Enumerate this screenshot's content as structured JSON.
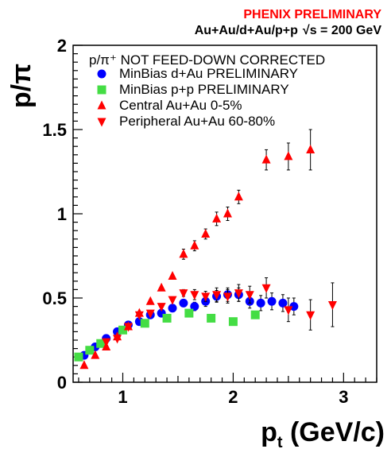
{
  "chart_data": {
    "type": "scatter",
    "header": "PHENIX PRELIMINARY",
    "system": "Au+Au/d+Au/p+p",
    "energy": "s = 200 GeV",
    "energy_prefix": "√",
    "xlabel": "p",
    "xlabel_sub": "t",
    "xlabel_unit": " (GeV/c)",
    "ylabel": "p/π",
    "xlim": [
      0.55,
      3.3
    ],
    "ylim": [
      0,
      2
    ],
    "xticks": [
      {
        "value": 1,
        "label": "1"
      },
      {
        "value": 2,
        "label": "2"
      },
      {
        "value": 3,
        "label": "3"
      }
    ],
    "yticks": [
      {
        "value": 0,
        "label": "0"
      },
      {
        "value": 0.5,
        "label": "0.5"
      },
      {
        "value": 1,
        "label": "1"
      },
      {
        "value": 1.5,
        "label": "1.5"
      },
      {
        "value": 2,
        "label": "2"
      }
    ],
    "legend_title": "p/π⁺ NOT FEED-DOWN CORRECTED",
    "legend_position": "top",
    "grid": false,
    "series": [
      {
        "name": "MinBias d+Au PRELIMINARY",
        "marker": "circle",
        "color": "#0000ff",
        "points": [
          [
            0.65,
            0.16,
            0.01
          ],
          [
            0.75,
            0.21,
            0.01
          ],
          [
            0.85,
            0.26,
            0.01
          ],
          [
            0.95,
            0.3,
            0.01
          ],
          [
            1.05,
            0.34,
            0.01
          ],
          [
            1.15,
            0.36,
            0.01
          ],
          [
            1.25,
            0.4,
            0.015
          ],
          [
            1.35,
            0.41,
            0.015
          ],
          [
            1.45,
            0.44,
            0.02
          ],
          [
            1.55,
            0.47,
            0.02
          ],
          [
            1.65,
            0.45,
            0.025
          ],
          [
            1.75,
            0.48,
            0.03
          ],
          [
            1.85,
            0.51,
            0.035
          ],
          [
            1.95,
            0.52,
            0.04
          ],
          [
            2.05,
            0.52,
            0.04
          ],
          [
            2.15,
            0.48,
            0.04
          ],
          [
            2.25,
            0.47,
            0.045
          ],
          [
            2.35,
            0.48,
            0.05
          ],
          [
            2.45,
            0.47,
            0.05
          ],
          [
            2.55,
            0.45,
            0.05
          ]
        ]
      },
      {
        "name": "MinBias p+p PRELIMINARY",
        "marker": "square",
        "color": "#44dd44",
        "points": [
          [
            0.6,
            0.15,
            0.0
          ],
          [
            0.7,
            0.19,
            0.0
          ],
          [
            0.8,
            0.23,
            0.0
          ],
          [
            1.0,
            0.31,
            0.0
          ],
          [
            1.2,
            0.35,
            0.0
          ],
          [
            1.4,
            0.38,
            0.0
          ],
          [
            1.6,
            0.41,
            0.0
          ],
          [
            1.8,
            0.38,
            0.0
          ],
          [
            2.0,
            0.36,
            0.0
          ],
          [
            2.2,
            0.4,
            0.0
          ]
        ]
      },
      {
        "name": "Central    Au+Au  0-5%",
        "marker": "triangle-up",
        "color": "#ff0000",
        "points": [
          [
            0.65,
            0.1,
            0.0
          ],
          [
            0.75,
            0.16,
            0.0
          ],
          [
            0.85,
            0.21,
            0.0
          ],
          [
            0.95,
            0.27,
            0.0
          ],
          [
            1.05,
            0.33,
            0.0
          ],
          [
            1.15,
            0.41,
            0.0
          ],
          [
            1.25,
            0.48,
            0.0
          ],
          [
            1.35,
            0.56,
            0.0
          ],
          [
            1.45,
            0.63,
            0.0
          ],
          [
            1.55,
            0.76,
            0.03
          ],
          [
            1.65,
            0.81,
            0.03
          ],
          [
            1.75,
            0.88,
            0.03
          ],
          [
            1.85,
            0.97,
            0.04
          ],
          [
            1.95,
            1.0,
            0.04
          ],
          [
            2.05,
            1.1,
            0.04
          ],
          [
            2.3,
            1.32,
            0.06
          ],
          [
            2.5,
            1.34,
            0.08
          ],
          [
            2.7,
            1.38,
            0.12
          ]
        ]
      },
      {
        "name": "Peripheral Au+Au 60-80%",
        "marker": "triangle-down",
        "color": "#ff0000",
        "points": [
          [
            0.85,
            0.24,
            0.0
          ],
          [
            0.95,
            0.26,
            0.0
          ],
          [
            1.05,
            0.33,
            0.0
          ],
          [
            1.15,
            0.4,
            0.0
          ],
          [
            1.25,
            0.41,
            0.0
          ],
          [
            1.35,
            0.45,
            0.0
          ],
          [
            1.45,
            0.49,
            0.0
          ],
          [
            1.55,
            0.53,
            0.02
          ],
          [
            1.65,
            0.52,
            0.03
          ],
          [
            1.75,
            0.51,
            0.03
          ],
          [
            1.85,
            0.52,
            0.04
          ],
          [
            1.95,
            0.51,
            0.04
          ],
          [
            2.05,
            0.53,
            0.05
          ],
          [
            2.15,
            0.52,
            0.05
          ],
          [
            2.3,
            0.56,
            0.06
          ],
          [
            2.5,
            0.43,
            0.07
          ],
          [
            2.7,
            0.4,
            0.09
          ],
          [
            2.9,
            0.46,
            0.13
          ]
        ]
      }
    ]
  }
}
